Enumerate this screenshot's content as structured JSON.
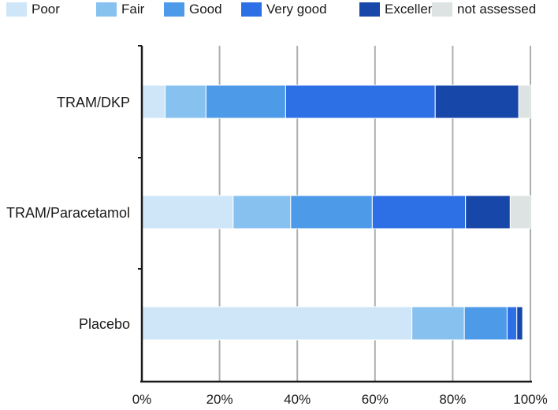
{
  "chart_data": {
    "type": "bar",
    "orientation": "horizontal",
    "stacked": true,
    "title": "",
    "xlabel": "",
    "ylabel": "",
    "xlim": [
      0,
      100
    ],
    "x_ticks": [
      "0%",
      "20%",
      "40%",
      "60%",
      "80%",
      "100%"
    ],
    "x_tick_values": [
      0,
      20,
      40,
      60,
      80,
      100
    ],
    "grid": true,
    "legend_position": "top",
    "categories": [
      "TRAM/DKP",
      "TRAM/Paracetamol",
      "Placebo"
    ],
    "series": [
      {
        "name": "Poor",
        "color": "#cfe6f8",
        "values": [
          6.0,
          23.5,
          69.5
        ]
      },
      {
        "name": "Fair",
        "color": "#86c1f0",
        "values": [
          10.5,
          14.8,
          13.5
        ]
      },
      {
        "name": "Good",
        "color": "#4d9ae8",
        "values": [
          20.5,
          21.0,
          11.0
        ]
      },
      {
        "name": "Very good",
        "color": "#2d70e6",
        "values": [
          38.5,
          24.0,
          2.5
        ]
      },
      {
        "name": "Excellent",
        "color": "#1747a8",
        "values": [
          21.5,
          11.5,
          1.5
        ]
      },
      {
        "name": "not assessed",
        "color": "#dde3e2",
        "values": [
          3.0,
          5.2,
          0
        ]
      }
    ]
  }
}
